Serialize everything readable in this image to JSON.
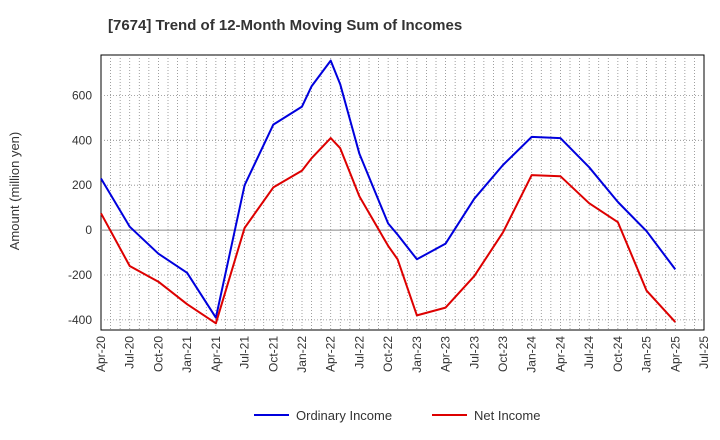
{
  "chart_data": {
    "type": "line",
    "title": "[7674]  Trend of 12-Month Moving Sum of Incomes",
    "xlabel": "",
    "ylabel": "Amount (million yen)",
    "ylim": [
      -445,
      780
    ],
    "yticks": [
      600,
      400,
      200,
      0,
      -200,
      -400
    ],
    "xtick_labels": [
      "Apr-20",
      "Jul-20",
      "Oct-20",
      "Jan-21",
      "Apr-21",
      "Jul-21",
      "Oct-21",
      "Jan-22",
      "Apr-22",
      "Jul-22",
      "Oct-22",
      "Jan-23",
      "Apr-23",
      "Jul-23",
      "Oct-23",
      "Jan-24",
      "Apr-24",
      "Jul-24",
      "Oct-24",
      "Jan-25",
      "Apr-25",
      "Jul-25"
    ],
    "legend_position": "bottom",
    "grid": true,
    "series": [
      {
        "name": "Ordinary Income",
        "color": "#0000dd",
        "points": [
          [
            0,
            230
          ],
          [
            1,
            15
          ],
          [
            2,
            -105
          ],
          [
            3,
            -190
          ],
          [
            4,
            -390
          ],
          [
            5,
            200
          ],
          [
            6,
            470
          ],
          [
            7,
            550
          ],
          [
            7.33,
            640
          ],
          [
            8,
            755
          ],
          [
            8.33,
            650
          ],
          [
            9,
            340
          ],
          [
            10,
            30
          ],
          [
            10.33,
            -20
          ],
          [
            11,
            -130
          ],
          [
            12,
            -60
          ],
          [
            13,
            140
          ],
          [
            14,
            290
          ],
          [
            15,
            415
          ],
          [
            16,
            410
          ],
          [
            17,
            280
          ],
          [
            18,
            125
          ],
          [
            19,
            -5
          ],
          [
            20,
            -175
          ]
        ]
      },
      {
        "name": "Net Income",
        "color": "#dd0000",
        "points": [
          [
            0,
            75
          ],
          [
            1,
            -160
          ],
          [
            2,
            -230
          ],
          [
            3,
            -330
          ],
          [
            4,
            -415
          ],
          [
            5,
            10
          ],
          [
            6,
            190
          ],
          [
            7,
            265
          ],
          [
            7.33,
            320
          ],
          [
            8,
            410
          ],
          [
            8.33,
            365
          ],
          [
            9,
            150
          ],
          [
            10,
            -70
          ],
          [
            10.33,
            -130
          ],
          [
            11,
            -380
          ],
          [
            12,
            -345
          ],
          [
            13,
            -205
          ],
          [
            14,
            -10
          ],
          [
            15,
            245
          ],
          [
            16,
            240
          ],
          [
            17,
            120
          ],
          [
            18,
            35
          ],
          [
            19,
            -270
          ],
          [
            20,
            -410
          ]
        ]
      }
    ]
  }
}
